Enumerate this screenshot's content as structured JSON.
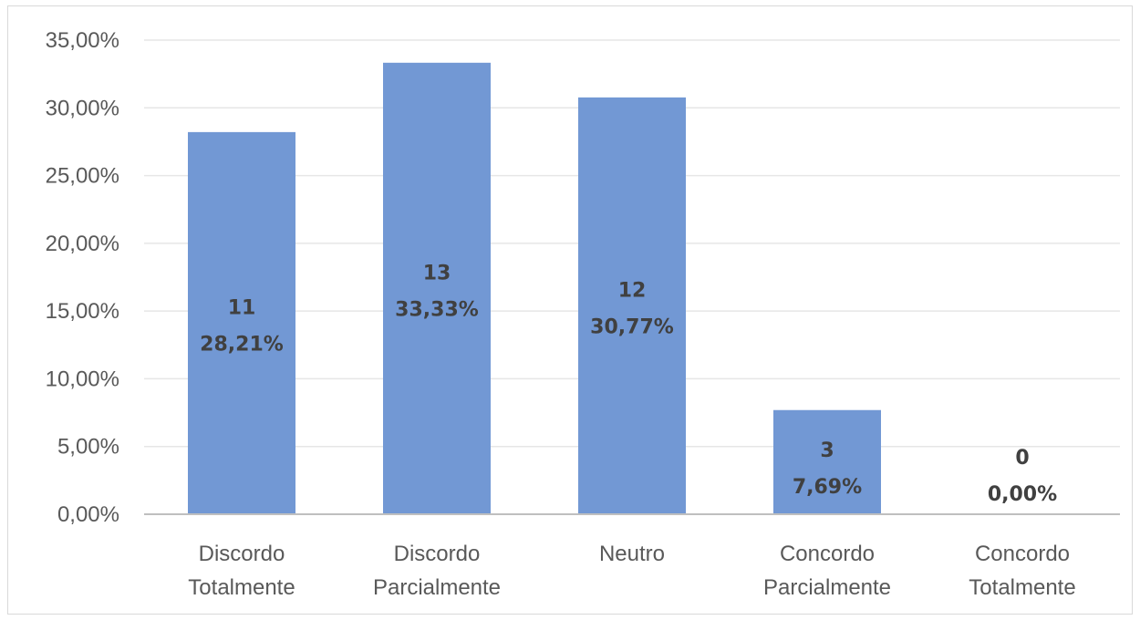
{
  "chart_data": {
    "type": "bar",
    "categories": [
      [
        "Discordo",
        "Totalmente"
      ],
      [
        "Discordo",
        "Parcialmente"
      ],
      [
        "Neutro"
      ],
      [
        "Concordo",
        "Parcialmente"
      ],
      [
        "Concordo",
        "Totalmente"
      ]
    ],
    "values": [
      28.21,
      33.33,
      30.77,
      7.69,
      0.0
    ],
    "counts": [
      11,
      13,
      12,
      3,
      0
    ],
    "data_labels": [
      [
        "11",
        "28,21%"
      ],
      [
        "13",
        "33,33%"
      ],
      [
        "12",
        "30,77%"
      ],
      [
        "3",
        "7,69%"
      ],
      [
        "0",
        "0,00%"
      ]
    ],
    "yticks": [
      "0,00%",
      "5,00%",
      "10,00%",
      "15,00%",
      "20,00%",
      "25,00%",
      "30,00%",
      "35,00%"
    ],
    "ylim": [
      0,
      35
    ],
    "grid": true,
    "legend": "none",
    "title": "",
    "xlabel": "",
    "ylabel": "",
    "colors": {
      "bar": "#7298d4",
      "grid": "#e6e6e6",
      "axis": "#bfbfbf"
    }
  }
}
